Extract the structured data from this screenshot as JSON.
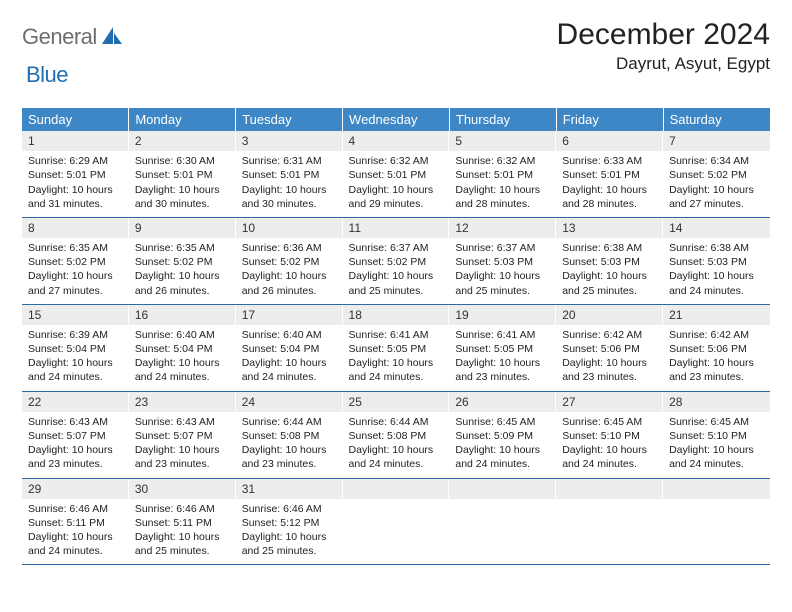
{
  "logo": {
    "general": "General",
    "blue": "Blue"
  },
  "title": "December 2024",
  "location": "Dayrut, Asyut, Egypt",
  "colors": {
    "header_bg": "#3d87c7",
    "header_text": "#ffffff",
    "daynum_bg": "#eceded",
    "row_border": "#2d6aa3",
    "text": "#222222",
    "logo_gray": "#6d6e71",
    "logo_blue": "#1f6fb2"
  },
  "typography": {
    "title_fontsize": 30,
    "location_fontsize": 17,
    "weekday_fontsize": 13,
    "daynum_fontsize": 12,
    "body_fontsize": 10.5
  },
  "weekdays": [
    "Sunday",
    "Monday",
    "Tuesday",
    "Wednesday",
    "Thursday",
    "Friday",
    "Saturday"
  ],
  "weeks": [
    [
      {
        "n": "1",
        "sr": "6:29 AM",
        "ss": "5:01 PM",
        "dl": "10 hours and 31 minutes."
      },
      {
        "n": "2",
        "sr": "6:30 AM",
        "ss": "5:01 PM",
        "dl": "10 hours and 30 minutes."
      },
      {
        "n": "3",
        "sr": "6:31 AM",
        "ss": "5:01 PM",
        "dl": "10 hours and 30 minutes."
      },
      {
        "n": "4",
        "sr": "6:32 AM",
        "ss": "5:01 PM",
        "dl": "10 hours and 29 minutes."
      },
      {
        "n": "5",
        "sr": "6:32 AM",
        "ss": "5:01 PM",
        "dl": "10 hours and 28 minutes."
      },
      {
        "n": "6",
        "sr": "6:33 AM",
        "ss": "5:01 PM",
        "dl": "10 hours and 28 minutes."
      },
      {
        "n": "7",
        "sr": "6:34 AM",
        "ss": "5:02 PM",
        "dl": "10 hours and 27 minutes."
      }
    ],
    [
      {
        "n": "8",
        "sr": "6:35 AM",
        "ss": "5:02 PM",
        "dl": "10 hours and 27 minutes."
      },
      {
        "n": "9",
        "sr": "6:35 AM",
        "ss": "5:02 PM",
        "dl": "10 hours and 26 minutes."
      },
      {
        "n": "10",
        "sr": "6:36 AM",
        "ss": "5:02 PM",
        "dl": "10 hours and 26 minutes."
      },
      {
        "n": "11",
        "sr": "6:37 AM",
        "ss": "5:02 PM",
        "dl": "10 hours and 25 minutes."
      },
      {
        "n": "12",
        "sr": "6:37 AM",
        "ss": "5:03 PM",
        "dl": "10 hours and 25 minutes."
      },
      {
        "n": "13",
        "sr": "6:38 AM",
        "ss": "5:03 PM",
        "dl": "10 hours and 25 minutes."
      },
      {
        "n": "14",
        "sr": "6:38 AM",
        "ss": "5:03 PM",
        "dl": "10 hours and 24 minutes."
      }
    ],
    [
      {
        "n": "15",
        "sr": "6:39 AM",
        "ss": "5:04 PM",
        "dl": "10 hours and 24 minutes."
      },
      {
        "n": "16",
        "sr": "6:40 AM",
        "ss": "5:04 PM",
        "dl": "10 hours and 24 minutes."
      },
      {
        "n": "17",
        "sr": "6:40 AM",
        "ss": "5:04 PM",
        "dl": "10 hours and 24 minutes."
      },
      {
        "n": "18",
        "sr": "6:41 AM",
        "ss": "5:05 PM",
        "dl": "10 hours and 24 minutes."
      },
      {
        "n": "19",
        "sr": "6:41 AM",
        "ss": "5:05 PM",
        "dl": "10 hours and 23 minutes."
      },
      {
        "n": "20",
        "sr": "6:42 AM",
        "ss": "5:06 PM",
        "dl": "10 hours and 23 minutes."
      },
      {
        "n": "21",
        "sr": "6:42 AM",
        "ss": "5:06 PM",
        "dl": "10 hours and 23 minutes."
      }
    ],
    [
      {
        "n": "22",
        "sr": "6:43 AM",
        "ss": "5:07 PM",
        "dl": "10 hours and 23 minutes."
      },
      {
        "n": "23",
        "sr": "6:43 AM",
        "ss": "5:07 PM",
        "dl": "10 hours and 23 minutes."
      },
      {
        "n": "24",
        "sr": "6:44 AM",
        "ss": "5:08 PM",
        "dl": "10 hours and 23 minutes."
      },
      {
        "n": "25",
        "sr": "6:44 AM",
        "ss": "5:08 PM",
        "dl": "10 hours and 24 minutes."
      },
      {
        "n": "26",
        "sr": "6:45 AM",
        "ss": "5:09 PM",
        "dl": "10 hours and 24 minutes."
      },
      {
        "n": "27",
        "sr": "6:45 AM",
        "ss": "5:10 PM",
        "dl": "10 hours and 24 minutes."
      },
      {
        "n": "28",
        "sr": "6:45 AM",
        "ss": "5:10 PM",
        "dl": "10 hours and 24 minutes."
      }
    ],
    [
      {
        "n": "29",
        "sr": "6:46 AM",
        "ss": "5:11 PM",
        "dl": "10 hours and 24 minutes."
      },
      {
        "n": "30",
        "sr": "6:46 AM",
        "ss": "5:11 PM",
        "dl": "10 hours and 25 minutes."
      },
      {
        "n": "31",
        "sr": "6:46 AM",
        "ss": "5:12 PM",
        "dl": "10 hours and 25 minutes."
      },
      null,
      null,
      null,
      null
    ]
  ],
  "labels": {
    "sunrise": "Sunrise: ",
    "sunset": "Sunset: ",
    "daylight": "Daylight: "
  }
}
